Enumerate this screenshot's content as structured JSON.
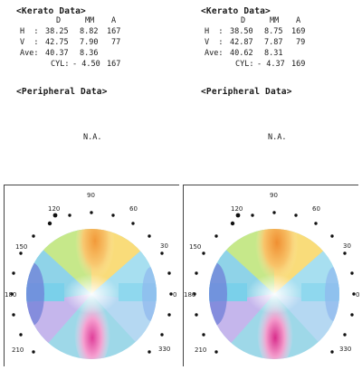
{
  "panels": [
    {
      "kerato_title": "<Kerato Data>",
      "headers": {
        "d": "D",
        "mm": "MM",
        "a": "A"
      },
      "rows": {
        "h": {
          "label": "H  :",
          "d": "38.25",
          "mm": "8.82",
          "a": "167"
        },
        "v": {
          "label": "V  :",
          "d": "42.75",
          "mm": "7.90",
          "a": "77"
        },
        "ave": {
          "label": "Ave:",
          "d": "40.37",
          "mm": "8.36"
        },
        "cyl": {
          "label": "CYL:",
          "value": "- 4.50",
          "a": "167"
        }
      },
      "peripheral_title": "<Peripheral Data>",
      "peripheral_value": "N.A."
    },
    {
      "kerato_title": "<Kerato Data>",
      "headers": {
        "d": "D",
        "mm": "MM",
        "a": "A"
      },
      "rows": {
        "h": {
          "label": "H  :",
          "d": "38.50",
          "mm": "8.75",
          "a": "169"
        },
        "v": {
          "label": "V  :",
          "d": "42.87",
          "mm": "7.87",
          "a": "79"
        },
        "ave": {
          "label": "Ave:",
          "d": "40.62",
          "mm": "8.31"
        },
        "cyl": {
          "label": "CYL:",
          "value": "- 4.37",
          "a": "169"
        }
      },
      "peripheral_title": "<Peripheral Data>",
      "peripheral_value": "N.A."
    }
  ],
  "map_axis_labels": {
    "a90": "90",
    "a120": "120",
    "a60": "60",
    "a150": "150",
    "a30": "30",
    "a180": "180",
    "a0": "0",
    "a210": "210",
    "a330": "330"
  }
}
